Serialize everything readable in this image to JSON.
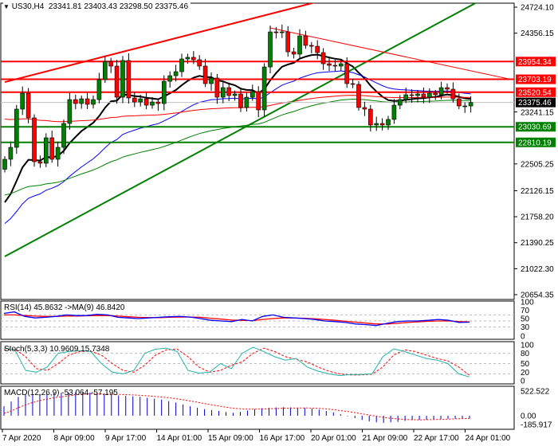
{
  "header": {
    "symbol": "US30,H4",
    "open": "23341.81",
    "high": "23403.43",
    "low": "23298.50",
    "close": "23375.46"
  },
  "indicators": {
    "rsi_label": "RSI(14) 45.8632  ->MA(9) 46.8420",
    "stoch_label": "Stoch(5,3,3) 10.9609 15.7348",
    "macd_label": "MACD(12,26,9) -53.064 -57.195"
  },
  "colors": {
    "bull": "#008000",
    "bear": "#ff0000",
    "ma_fast": "#000000",
    "ma_mid": "#0000ff",
    "ma_slow": "#ff0000",
    "ma_long": "#008000"
  },
  "chart_data": [
    {
      "type": "candlestick",
      "title": "US30,H4",
      "ylim": [
        20654.35,
        24724.1
      ],
      "y_ticks": [
        "24724.10",
        "24356.15",
        "23241.15",
        "22505.25",
        "22126.15",
        "21758.20",
        "21390.25",
        "21022.30",
        "20654.35"
      ],
      "x_ticks": [
        "7 Apr 2020",
        "8 Apr 09:00",
        "9 Apr 17:00",
        "14 Apr 01:00",
        "15 Apr 09:00",
        "16 Apr 17:00",
        "20 Apr 01:00",
        "21 Apr 09:00",
        "22 Apr 17:00",
        "24 Apr 01:00"
      ],
      "first_open": 22430,
      "closes": [
        22571,
        22740,
        23281,
        23506,
        23157,
        22537,
        22515,
        22875,
        22571,
        22740,
        23078,
        23416,
        23360,
        23427,
        23349,
        23416,
        23698,
        23957,
        23890,
        23450,
        23969,
        23439,
        23382,
        23427,
        23337,
        23382,
        23360,
        23675,
        23754,
        23811,
        23991,
        24014,
        23980,
        23890,
        23642,
        23721,
        23450,
        23585,
        23473,
        23495,
        23304,
        23450,
        23529,
        23270,
        23878,
        24374,
        24363,
        24374,
        24092,
        24059,
        24318,
        24183,
        24171,
        24081,
        23923,
        23901,
        23890,
        23923,
        23642,
        23631,
        23304,
        23281,
        23056,
        23078,
        23056,
        23135,
        23337,
        23416,
        23484,
        23473,
        23495,
        23450,
        23506,
        23484,
        23585,
        23563,
        23427,
        23326,
        23326,
        23375.46
      ],
      "levels": [
        {
          "price": 23954.34,
          "label": "23954.34",
          "color": "#ff0000"
        },
        {
          "price": 23703.19,
          "label": "23703.19",
          "color": "#ff0000"
        },
        {
          "price": 23520.54,
          "label": "23520.54",
          "color": "#ff0000"
        },
        {
          "price": 23030.69,
          "label": "23030.69",
          "color": "#008000"
        },
        {
          "price": 22810.19,
          "label": "22810.19",
          "color": "#008000"
        }
      ],
      "current_price": {
        "price": 23375.46,
        "label": "23375.46"
      },
      "trendlines": [
        {
          "from": [
            0,
            23664
          ],
          "to": [
            53,
            24800
          ],
          "color": "#ff0000",
          "width": 2
        },
        {
          "from": [
            0,
            21196
          ],
          "to": [
            80,
            24791
          ],
          "color": "#008000",
          "width": 2
        },
        {
          "from": [
            45,
            24431
          ],
          "to": [
            86,
            23698
          ],
          "color": "#ff0000",
          "width": 1
        }
      ],
      "moving_averages": [
        {
          "name": "ma-fast",
          "seed": 21850,
          "period": 12,
          "color": "#000000",
          "width": 2
        },
        {
          "name": "ma-mid",
          "seed": 21600,
          "period": 30,
          "color": "#0000ff",
          "width": 1
        },
        {
          "name": "ma-slow",
          "seed": 23150,
          "period": 120,
          "color": "#ff0000",
          "width": 1
        },
        {
          "name": "ma-long",
          "seed": 22050,
          "period": 70,
          "color": "#008000",
          "width": 1
        }
      ]
    },
    {
      "type": "line",
      "title": "RSI(14)",
      "ylim": [
        0,
        100
      ],
      "y_ticks": [
        "100",
        "70",
        "50",
        "30",
        "0"
      ],
      "rsi": [
        75,
        80,
        65,
        60,
        62,
        65,
        70,
        68,
        68,
        72,
        70,
        62,
        60,
        58,
        60,
        62,
        64,
        65,
        63,
        58,
        52,
        50,
        48,
        55,
        50,
        65,
        70,
        62,
        60,
        58,
        55,
        50,
        48,
        45,
        40,
        38,
        35,
        42,
        48,
        50,
        50,
        52,
        55,
        52,
        45,
        46
      ],
      "ma": [
        70,
        70,
        68,
        66,
        65,
        65,
        66,
        66,
        67,
        68,
        68,
        66,
        64,
        62,
        61,
        61,
        62,
        63,
        63,
        62,
        59,
        56,
        53,
        52,
        51,
        55,
        58,
        60,
        60,
        59,
        57,
        55,
        52,
        49,
        46,
        43,
        40,
        40,
        42,
        45,
        47,
        49,
        50,
        50,
        48,
        47
      ]
    },
    {
      "type": "line",
      "title": "Stoch(5,3,3)",
      "ylim": [
        0,
        100
      ],
      "y_ticks": [
        "100",
        "80",
        "50",
        "20",
        "0"
      ],
      "main": [
        95,
        90,
        30,
        25,
        40,
        80,
        85,
        88,
        85,
        50,
        25,
        20,
        30,
        80,
        92,
        95,
        85,
        30,
        22,
        25,
        50,
        35,
        80,
        98,
        85,
        70,
        60,
        65,
        40,
        28,
        20,
        15,
        18,
        18,
        20,
        70,
        93,
        85,
        75,
        65,
        60,
        50,
        20,
        10.96
      ],
      "signal": [
        90,
        92,
        70,
        35,
        30,
        50,
        75,
        85,
        86,
        75,
        50,
        30,
        25,
        45,
        75,
        90,
        92,
        70,
        40,
        25,
        30,
        45,
        55,
        80,
        95,
        85,
        70,
        62,
        55,
        40,
        28,
        20,
        17,
        17,
        19,
        40,
        75,
        90,
        85,
        75,
        65,
        58,
        40,
        15.73
      ]
    },
    {
      "type": "bar",
      "title": "MACD(12,26,9)",
      "ylim": [
        -185.917,
        522.522
      ],
      "y_ticks": [
        "522.522",
        "0.00",
        "-185.917"
      ],
      "macd": [
        200,
        300,
        400,
        440,
        450,
        460,
        470,
        480,
        485,
        490,
        495,
        500,
        490,
        470,
        450,
        440,
        430,
        420,
        410,
        400,
        380,
        360,
        340,
        310,
        280,
        240,
        200,
        170,
        140,
        120,
        100,
        80,
        60,
        80,
        110,
        140,
        160,
        170,
        175,
        180,
        175,
        170,
        165,
        150,
        130,
        100,
        70,
        30,
        -10,
        -50,
        -90,
        -120,
        -140,
        -150,
        -140,
        -130,
        -110,
        -95,
        -90,
        -85,
        -80,
        -70,
        -65,
        -60,
        -55,
        -53.064
      ],
      "signal": [
        50,
        100,
        170,
        230,
        280,
        320,
        350,
        380,
        400,
        420,
        440,
        455,
        462,
        465,
        462,
        458,
        452,
        446,
        440,
        432,
        422,
        410,
        396,
        380,
        360,
        338,
        312,
        286,
        258,
        230,
        205,
        180,
        160,
        148,
        140,
        140,
        142,
        148,
        152,
        158,
        162,
        164,
        165,
        162,
        156,
        145,
        130,
        110,
        90,
        65,
        40,
        15,
        -10,
        -35,
        -55,
        -70,
        -80,
        -85,
        -86,
        -85,
        -82,
        -78,
        -72,
        -66,
        -61,
        -57.195
      ]
    }
  ]
}
